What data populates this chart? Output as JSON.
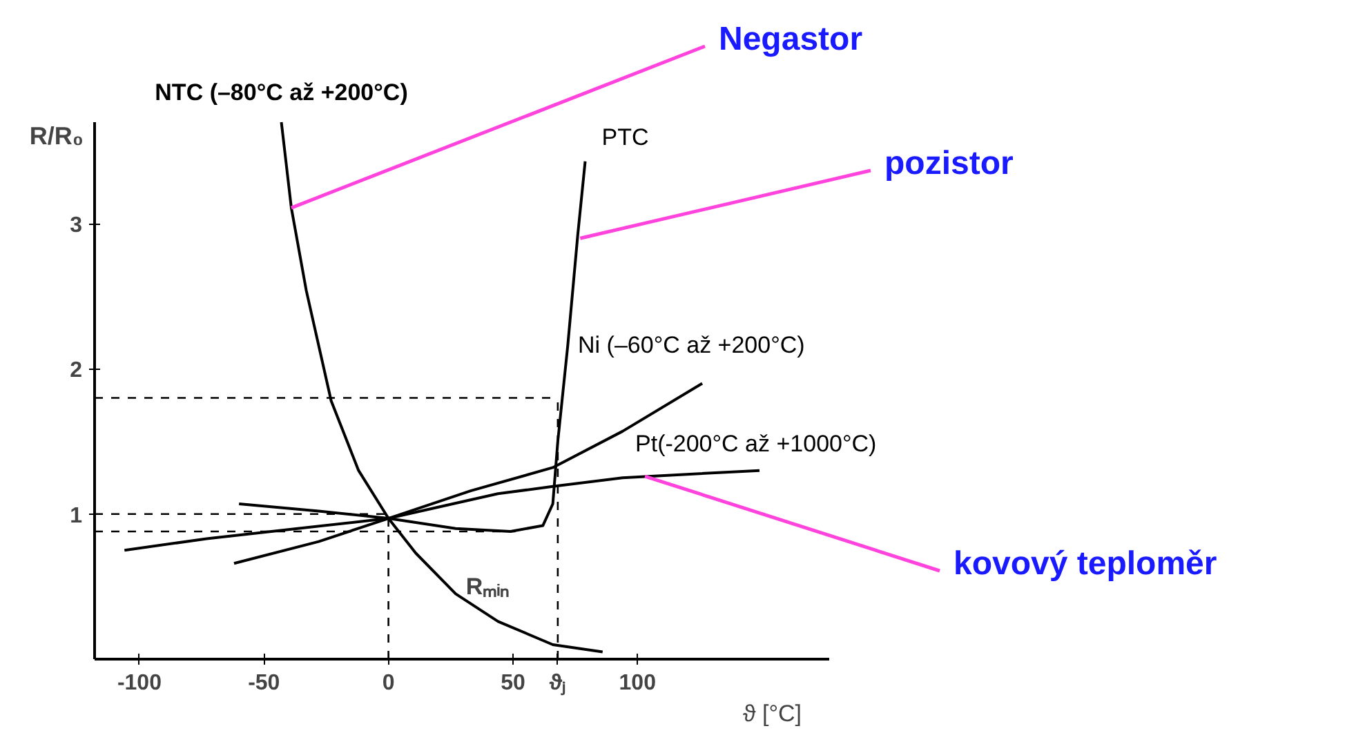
{
  "chart_data": {
    "type": "line",
    "xlabel": "ϑ [°C]",
    "ylabel": "R/R₀",
    "xlim": [
      -118,
      177
    ],
    "ylim": [
      0,
      3.7
    ],
    "xticks": [
      -100,
      -50,
      0,
      50,
      {
        "value": 68,
        "label": "ϑⱼ"
      },
      100
    ],
    "yticks": [
      1,
      2,
      3
    ],
    "marker": "none",
    "line_style": "solid",
    "series": [
      {
        "name": "NTC (–80°C až +200°C)",
        "color": "#000000",
        "x": [
          -43,
          -39,
          -33,
          -23,
          -12,
          0,
          11,
          27,
          44,
          66,
          86
        ],
        "values": [
          3.7,
          3.11,
          2.54,
          1.78,
          1.3,
          0.97,
          0.73,
          0.45,
          0.26,
          0.1,
          0.05
        ]
      },
      {
        "name": "PTC",
        "color": "#000000",
        "x": [
          -60,
          -28,
          0,
          27,
          49,
          62,
          66,
          68,
          72,
          76,
          79
        ],
        "values": [
          1.07,
          1.02,
          0.97,
          0.9,
          0.88,
          0.92,
          1.07,
          1.5,
          2.16,
          2.92,
          3.43
        ]
      },
      {
        "name": "Ni (–60°C až +200°C)",
        "color": "#000000",
        "x": [
          -62,
          -28,
          0,
          33,
          66,
          94,
          126
        ],
        "values": [
          0.66,
          0.81,
          0.97,
          1.16,
          1.32,
          1.57,
          1.9
        ]
      },
      {
        "name": "Pt(-200°C až +1000°C)",
        "color": "#000000",
        "x": [
          -106,
          -73,
          0,
          44,
          66,
          94,
          149
        ],
        "values": [
          0.75,
          0.83,
          0.97,
          1.14,
          1.19,
          1.25,
          1.3
        ]
      }
    ],
    "ref_lines": [
      {
        "axis": "y",
        "value": 1.8,
        "line_style": "dashed"
      },
      {
        "axis": "x",
        "value": 68,
        "line_style": "dashed"
      },
      {
        "axis": "y",
        "value": 1,
        "line_style": "dashed"
      },
      {
        "axis": "x",
        "value": 0,
        "line_style": "dashed"
      },
      {
        "axis": "y",
        "value": 0.88,
        "line_style": "dashed"
      }
    ],
    "annotations": [
      {
        "text": "Rₘᵢₙ",
        "x": 51,
        "y": 0.88
      },
      {
        "text": "Negastor",
        "x": -39,
        "y": 3.11
      },
      {
        "text": "pozistor",
        "x": 77,
        "y": 2.9
      },
      {
        "text": "kovový teploměr",
        "x": 103,
        "y": 1.26
      }
    ]
  }
}
